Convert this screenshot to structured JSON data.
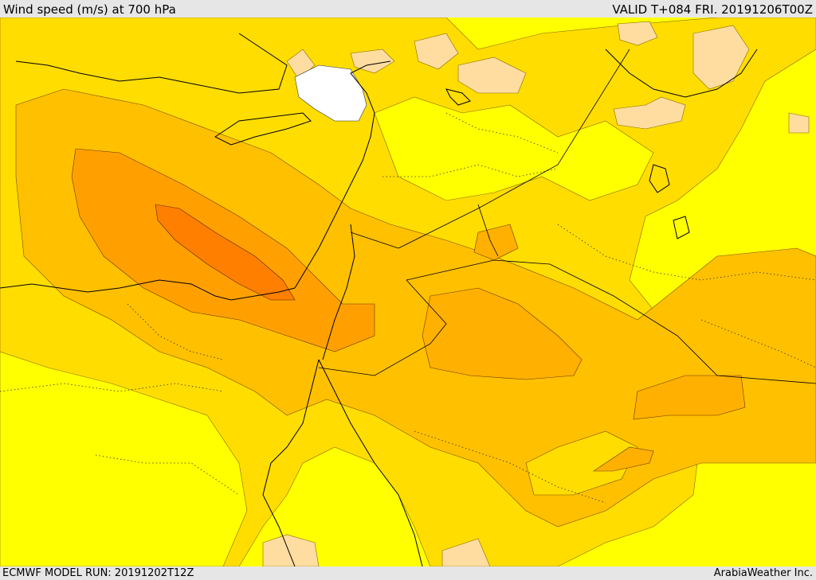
{
  "header": {
    "title": "Wind speed (m/s) at 700 hPa",
    "valid": "VALID T+084 FRI. 20191206T00Z"
  },
  "footer": {
    "model_run": "ECMWF MODEL RUN: 20191202T12Z",
    "credit": "ArabiaWeather Inc."
  },
  "colors": {
    "level_1": "#ffff00",
    "level_2": "#ffdd00",
    "level_3": "#ffc000",
    "level_4": "#ffa000",
    "level_5": "#ff7f00",
    "calm_tan": "#ffdda0",
    "calm_white": "#ffffff",
    "coastline": "#000000"
  }
}
